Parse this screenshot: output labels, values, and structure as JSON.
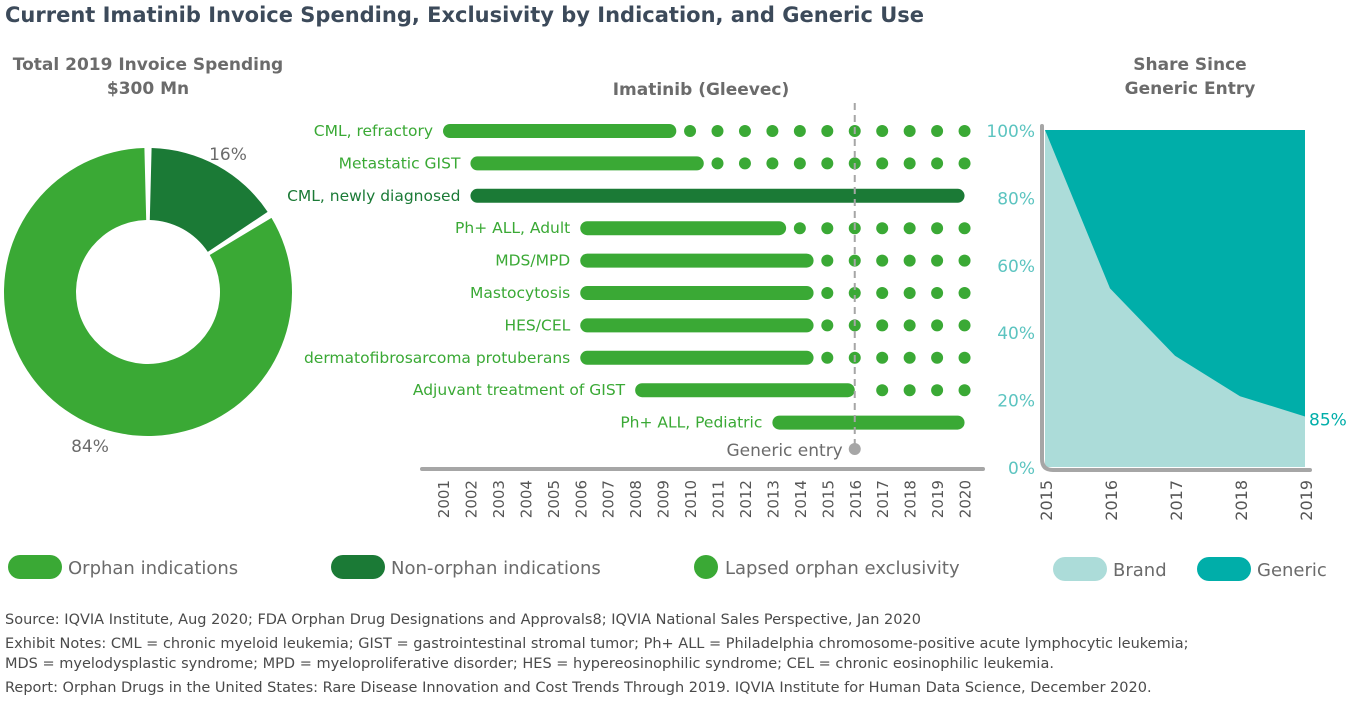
{
  "title": "Current Imatinib Invoice Spending, Exclusivity by Indication, and Generic Use",
  "colors": {
    "orphan": "#3aa935",
    "non_orphan": "#1b7a36",
    "brand": "#acdcd9",
    "generic": "#00aea9",
    "generic_entry": "#a6a6a6",
    "axis": "#a6a6a6",
    "title": "#3c4a5a"
  },
  "chart_data": [
    {
      "type": "pie",
      "variant": "donut",
      "title": "Total 2019 Invoice Spending",
      "subtitle": "$300 Mn",
      "slices": [
        {
          "category": "Non-orphan indications",
          "value": 16,
          "label": "16%"
        },
        {
          "category": "Orphan indications",
          "value": 84,
          "label": "84%"
        }
      ]
    },
    {
      "type": "timeline",
      "title": "Imatinib (Gleevec)",
      "x_ticks": [
        "2001",
        "2002",
        "2003",
        "2004",
        "2005",
        "2006",
        "2007",
        "2008",
        "2009",
        "2010",
        "2011",
        "2012",
        "2013",
        "2014",
        "2015",
        "2016",
        "2017",
        "2018",
        "2019",
        "2020"
      ],
      "generic_entry": {
        "year": 2016,
        "label": "Generic entry"
      },
      "rows": [
        {
          "label": "CML, refractory",
          "kind": "orphan",
          "bar_start": 2001,
          "bar_end": 2009.5,
          "dots": [
            2010,
            2011,
            2012,
            2013,
            2014,
            2015,
            2016,
            2017,
            2018,
            2019,
            2020
          ]
        },
        {
          "label": "Metastatic GIST",
          "kind": "orphan",
          "bar_start": 2002,
          "bar_end": 2010.5,
          "dots": [
            2011,
            2012,
            2013,
            2014,
            2015,
            2016,
            2017,
            2018,
            2019,
            2020
          ]
        },
        {
          "label": "CML, newly diagnosed",
          "kind": "non_orphan",
          "bar_start": 2002,
          "bar_end": 2020,
          "dots": []
        },
        {
          "label": "Ph+ ALL, Adult",
          "kind": "orphan",
          "bar_start": 2006,
          "bar_end": 2013.5,
          "dots": [
            2014,
            2015,
            2016,
            2017,
            2018,
            2019,
            2020
          ]
        },
        {
          "label": "MDS/MPD",
          "kind": "orphan",
          "bar_start": 2006,
          "bar_end": 2014.5,
          "dots": [
            2015,
            2016,
            2017,
            2018,
            2019,
            2020
          ]
        },
        {
          "label": "Mastocytosis",
          "kind": "orphan",
          "bar_start": 2006,
          "bar_end": 2014.5,
          "dots": [
            2015,
            2016,
            2017,
            2018,
            2019,
            2020
          ]
        },
        {
          "label": "HES/CEL",
          "kind": "orphan",
          "bar_start": 2006,
          "bar_end": 2014.5,
          "dots": [
            2015,
            2016,
            2017,
            2018,
            2019,
            2020
          ]
        },
        {
          "label": "dermatofibrosarcoma protuberans",
          "kind": "orphan",
          "bar_start": 2006,
          "bar_end": 2014.5,
          "dots": [
            2015,
            2016,
            2017,
            2018,
            2019,
            2020
          ]
        },
        {
          "label": "Adjuvant treatment of GIST",
          "kind": "orphan",
          "bar_start": 2008,
          "bar_end": 2016,
          "dots": [
            2017,
            2018,
            2019,
            2020
          ]
        },
        {
          "label": "Ph+ ALL, Pediatric",
          "kind": "orphan",
          "bar_start": 2013,
          "bar_end": 2020,
          "dots": []
        }
      ]
    },
    {
      "type": "area",
      "title": "Share Since Generic Entry",
      "x": [
        "2015",
        "2016",
        "2017",
        "2018",
        "2019"
      ],
      "series": [
        {
          "name": "Brand",
          "values": [
            100,
            53,
            33,
            21,
            15
          ]
        },
        {
          "name": "Generic",
          "values": [
            0,
            47,
            67,
            79,
            85
          ]
        }
      ],
      "stacked": true,
      "ylim": [
        0,
        100
      ],
      "y_ticks": [
        "0%",
        "20%",
        "40%",
        "60%",
        "80%",
        "100%"
      ],
      "end_label": "85%"
    }
  ],
  "legend": {
    "orphan": "Orphan indications",
    "non_orphan": "Non-orphan indications",
    "lapsed": "Lapsed orphan exclusivity",
    "brand": "Brand",
    "generic": "Generic"
  },
  "footer": {
    "source": "Source: IQVIA Institute, Aug 2020; FDA Orphan Drug Designations and Approvals8; IQVIA National Sales Perspective, Jan 2020",
    "notes1": "Exhibit Notes: CML = chronic myeloid leukemia; GIST = gastrointestinal stromal tumor; Ph+ ALL = Philadelphia chromosome-positive acute lymphocytic leukemia;",
    "notes2": "MDS = myelodysplastic syndrome; MPD = myeloproliferative disorder; HES = hypereosinophilic syndrome; CEL = chronic eosinophilic leukemia.",
    "report": "Report: Orphan Drugs in the United States: Rare Disease Innovation and Cost Trends Through 2019. IQVIA Institute for Human Data Science, December 2020."
  }
}
